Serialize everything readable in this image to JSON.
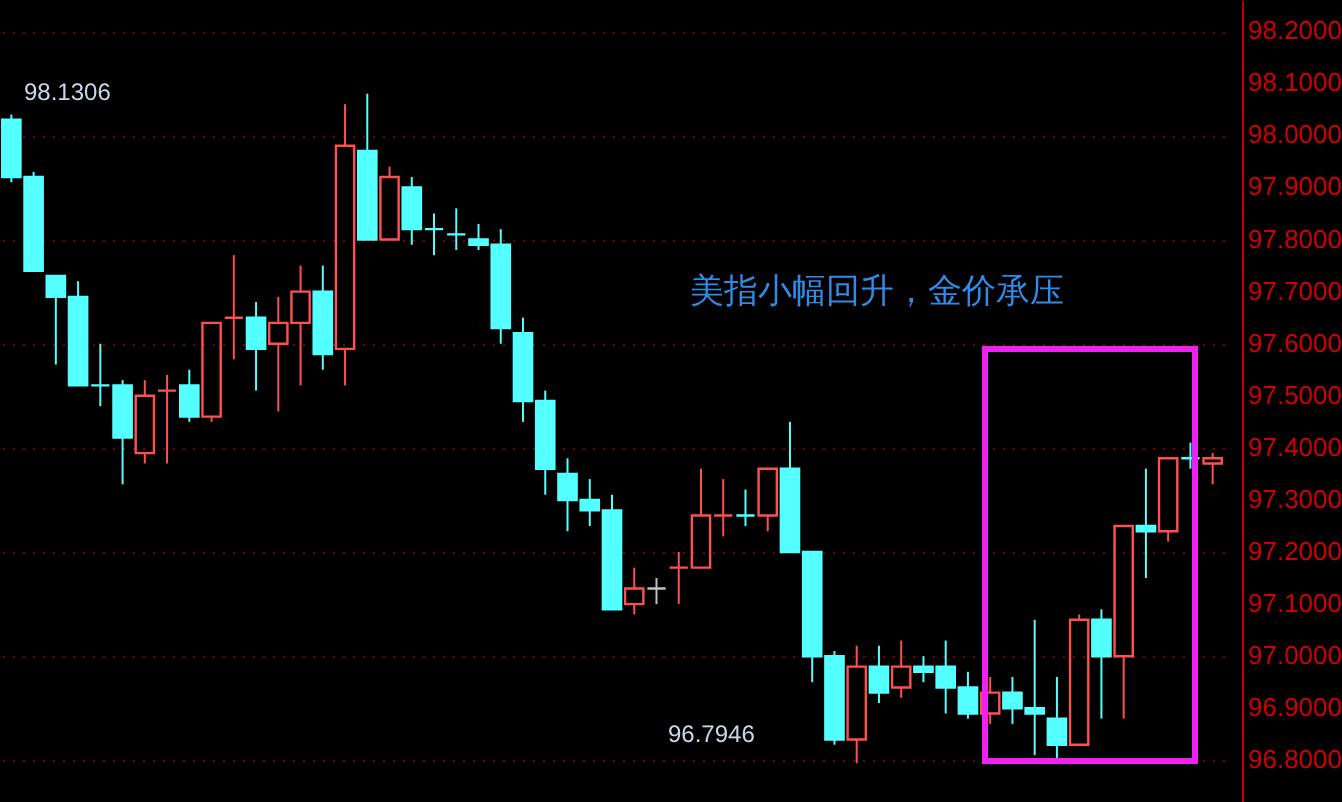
{
  "chart_data": {
    "type": "candlestick",
    "categories": [
      null,
      null,
      null,
      null,
      null,
      null,
      null,
      null,
      null,
      null,
      null,
      null,
      null,
      null,
      null,
      null,
      null,
      null,
      null,
      null,
      null,
      null,
      null,
      null,
      null,
      null,
      null,
      null,
      null,
      null,
      null,
      null,
      null,
      null,
      null,
      null,
      null,
      null,
      null,
      null,
      null,
      null,
      null,
      null,
      null,
      null,
      null,
      null,
      null,
      null,
      null,
      null,
      null,
      null,
      null
    ],
    "ohlc": [
      [
        98.03,
        98.04,
        97.91,
        97.92
      ],
      [
        97.92,
        97.93,
        97.74,
        97.74
      ],
      [
        97.73,
        97.73,
        97.56,
        97.69
      ],
      [
        97.69,
        97.72,
        97.52,
        97.52
      ],
      [
        97.52,
        97.6,
        97.48,
        97.52
      ],
      [
        97.52,
        97.53,
        97.33,
        97.42
      ],
      [
        97.39,
        97.53,
        97.37,
        97.5
      ],
      [
        97.51,
        97.54,
        97.37,
        97.51
      ],
      [
        97.52,
        97.55,
        97.45,
        97.46
      ],
      [
        97.46,
        97.64,
        97.45,
        97.64
      ],
      [
        97.65,
        97.77,
        97.57,
        97.65
      ],
      [
        97.65,
        97.68,
        97.51,
        97.59
      ],
      [
        97.6,
        97.69,
        97.47,
        97.64
      ],
      [
        97.64,
        97.75,
        97.52,
        97.7
      ],
      [
        97.7,
        97.75,
        97.55,
        97.58
      ],
      [
        97.59,
        98.06,
        97.52,
        97.98
      ],
      [
        97.97,
        98.08,
        97.8,
        97.8
      ],
      [
        97.8,
        97.94,
        97.8,
        97.92
      ],
      [
        97.9,
        97.92,
        97.79,
        97.82
      ],
      [
        97.82,
        97.85,
        97.77,
        97.82
      ],
      [
        97.81,
        97.86,
        97.78,
        97.81
      ],
      [
        97.8,
        97.83,
        97.78,
        97.79
      ],
      [
        97.79,
        97.82,
        97.6,
        97.63
      ],
      [
        97.62,
        97.65,
        97.45,
        97.49
      ],
      [
        97.49,
        97.51,
        97.31,
        97.36
      ],
      [
        97.35,
        97.38,
        97.24,
        97.3
      ],
      [
        97.3,
        97.34,
        97.25,
        97.28
      ],
      [
        97.28,
        97.31,
        97.09,
        97.09
      ],
      [
        97.1,
        97.17,
        97.08,
        97.13
      ],
      [
        97.13,
        97.15,
        97.1,
        97.13
      ],
      [
        97.17,
        97.2,
        97.1,
        97.17
      ],
      [
        97.17,
        97.36,
        97.17,
        97.27
      ],
      [
        97.27,
        97.34,
        97.23,
        97.27
      ],
      [
        97.27,
        97.32,
        97.25,
        97.27
      ],
      [
        97.27,
        97.36,
        97.24,
        97.36
      ],
      [
        97.36,
        97.45,
        97.2,
        97.2
      ],
      [
        97.2,
        97.2,
        96.95,
        97.0
      ],
      [
        97.0,
        97.01,
        96.83,
        96.84
      ],
      [
        96.84,
        97.02,
        96.7946,
        96.98
      ],
      [
        96.98,
        97.02,
        96.91,
        96.93
      ],
      [
        96.94,
        97.03,
        96.92,
        96.98
      ],
      [
        96.98,
        97.0,
        96.95,
        96.97
      ],
      [
        96.98,
        97.03,
        96.89,
        96.94
      ],
      [
        96.94,
        96.97,
        96.88,
        96.89
      ],
      [
        96.89,
        96.96,
        96.87,
        96.93
      ],
      [
        96.93,
        96.96,
        96.87,
        96.9
      ],
      [
        96.9,
        97.07,
        96.81,
        96.89
      ],
      [
        96.88,
        96.96,
        96.8,
        96.83
      ],
      [
        96.83,
        97.08,
        96.83,
        97.07
      ],
      [
        97.07,
        97.09,
        96.88,
        97.0
      ],
      [
        97.0,
        97.25,
        96.88,
        97.25
      ],
      [
        97.25,
        97.36,
        97.15,
        97.24
      ],
      [
        97.24,
        97.38,
        97.22,
        97.38
      ],
      [
        97.38,
        97.41,
        97.36,
        97.38
      ],
      [
        97.37,
        97.39,
        97.33,
        97.38
      ]
    ],
    "colors": [
      "#54ffff",
      "#54ffff",
      "#54ffff",
      "#54ffff",
      "#54ffff",
      "#54ffff",
      "#ff5050",
      "#ff5050",
      "#54ffff",
      "#ff5050",
      "#ff5050",
      "#54ffff",
      "#ff5050",
      "#ff5050",
      "#54ffff",
      "#ff5050",
      "#54ffff",
      "#ff5050",
      "#54ffff",
      "#54ffff",
      "#54ffff",
      "#54ffff",
      "#54ffff",
      "#54ffff",
      "#54ffff",
      "#54ffff",
      "#54ffff",
      "#54ffff",
      "#ff5050",
      "#c0c0c0",
      "#ff5050",
      "#ff5050",
      "#ff5050",
      "#54ffff",
      "#ff5050",
      "#54ffff",
      "#54ffff",
      "#54ffff",
      "#ff5050",
      "#54ffff",
      "#ff5050",
      "#54ffff",
      "#54ffff",
      "#54ffff",
      "#ff5050",
      "#54ffff",
      "#54ffff",
      "#54ffff",
      "#ff5050",
      "#54ffff",
      "#ff5050",
      "#54ffff",
      "#ff5050",
      "#54ffff",
      "#ff5050"
    ],
    "ylim": [
      96.72,
      98.26
    ],
    "yticks": [
      {
        "value": 96.8,
        "label": "96.8000"
      },
      {
        "value": 96.9,
        "label": "96.9000"
      },
      {
        "value": 97.0,
        "label": "97.0000"
      },
      {
        "value": 97.1,
        "label": "97.1000"
      },
      {
        "value": 97.2,
        "label": "97.2000"
      },
      {
        "value": 97.3,
        "label": "97.3000"
      },
      {
        "value": 97.4,
        "label": "97.4000"
      },
      {
        "value": 97.5,
        "label": "97.5000"
      },
      {
        "value": 97.6,
        "label": "97.6000"
      },
      {
        "value": 97.7,
        "label": "97.7000"
      },
      {
        "value": 97.8,
        "label": "97.8000"
      },
      {
        "value": 97.9,
        "label": "97.9000"
      },
      {
        "value": 98.0,
        "label": "98.0000"
      },
      {
        "value": 98.1,
        "label": "98.1000"
      },
      {
        "value": 98.2,
        "label": "98.2000"
      }
    ],
    "grid": "y",
    "tick_labels": "y",
    "annotations": [
      "美指小幅回升，金价承压",
      "98.1306",
      "96.7946"
    ]
  }
}
